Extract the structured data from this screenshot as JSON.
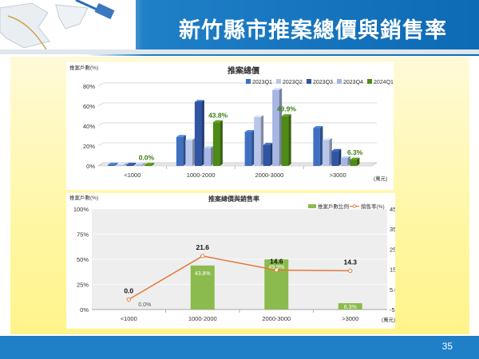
{
  "slide": {
    "title": "新竹縣市推案總價與銷售率",
    "page_number": "35"
  },
  "colors": {
    "header_blue": "#1f7fc7",
    "panel_yellow": "#fff7a8",
    "bar_green": "#8bbb4e",
    "line_orange": "#e07b39"
  },
  "chart_data": [
    {
      "type": "bar",
      "title": "推案總價",
      "ylabel": "推案戶數(%)",
      "xlabel": "(萬元)",
      "categories": [
        "<1000",
        "1000-2000",
        "2000-3000",
        ">3000"
      ],
      "ylim": [
        0,
        80
      ],
      "yticks": [
        "0%",
        "20%",
        "40%",
        "60%",
        "80%"
      ],
      "legend_position": "top",
      "grid": true,
      "series": [
        {
          "name": "2023Q1",
          "color": "#3f6fc1",
          "values": [
            1,
            29,
            34,
            38
          ]
        },
        {
          "name": "2023Q2",
          "color": "#b8c6ea",
          "values": [
            1,
            26,
            49,
            26
          ]
        },
        {
          "name": "2023Q3",
          "color": "#2f55a4",
          "values": [
            1,
            64,
            21,
            15
          ]
        },
        {
          "name": "2023Q4",
          "color": "#a7b6e2",
          "values": [
            1,
            18,
            76,
            8
          ]
        },
        {
          "name": "2024Q1",
          "color": "#4e8a16",
          "values": [
            0.0,
            43.8,
            49.9,
            6.3
          ]
        }
      ],
      "data_labels": [
        "0.0%",
        "43.8%",
        "49.9%",
        "6.3%"
      ]
    },
    {
      "type": "bar",
      "title": "推案總價與銷售率",
      "ylabel": "推案戶數(%)",
      "xlabel": "(萬元)",
      "categories": [
        "<1000",
        "1000-2000",
        "2000-3000",
        ">3000"
      ],
      "ylim": [
        0,
        100
      ],
      "y2lim": [
        -5,
        45
      ],
      "yticks": [
        "0%",
        "25%",
        "50%",
        "75%",
        "100%"
      ],
      "y2ticks": [
        "-5.0",
        "5.0",
        "15.0",
        "25.0",
        "35.0",
        "45.0"
      ],
      "legend_position": "top-right",
      "series": [
        {
          "name": "推案戶數比例",
          "kind": "bar",
          "color": "#8bbb4e",
          "values": [
            0.0,
            43.8,
            49.9,
            6.3
          ],
          "labels": [
            "0.0%",
            "43.8%",
            "49.9%",
            "6.3%"
          ]
        },
        {
          "name": "銷售率(%)",
          "kind": "line",
          "axis": "secondary",
          "color": "#e07b39",
          "values": [
            0.0,
            21.6,
            14.6,
            14.3
          ],
          "labels": [
            "0.0",
            "21.6",
            "14.6",
            "14.3"
          ]
        }
      ]
    }
  ]
}
